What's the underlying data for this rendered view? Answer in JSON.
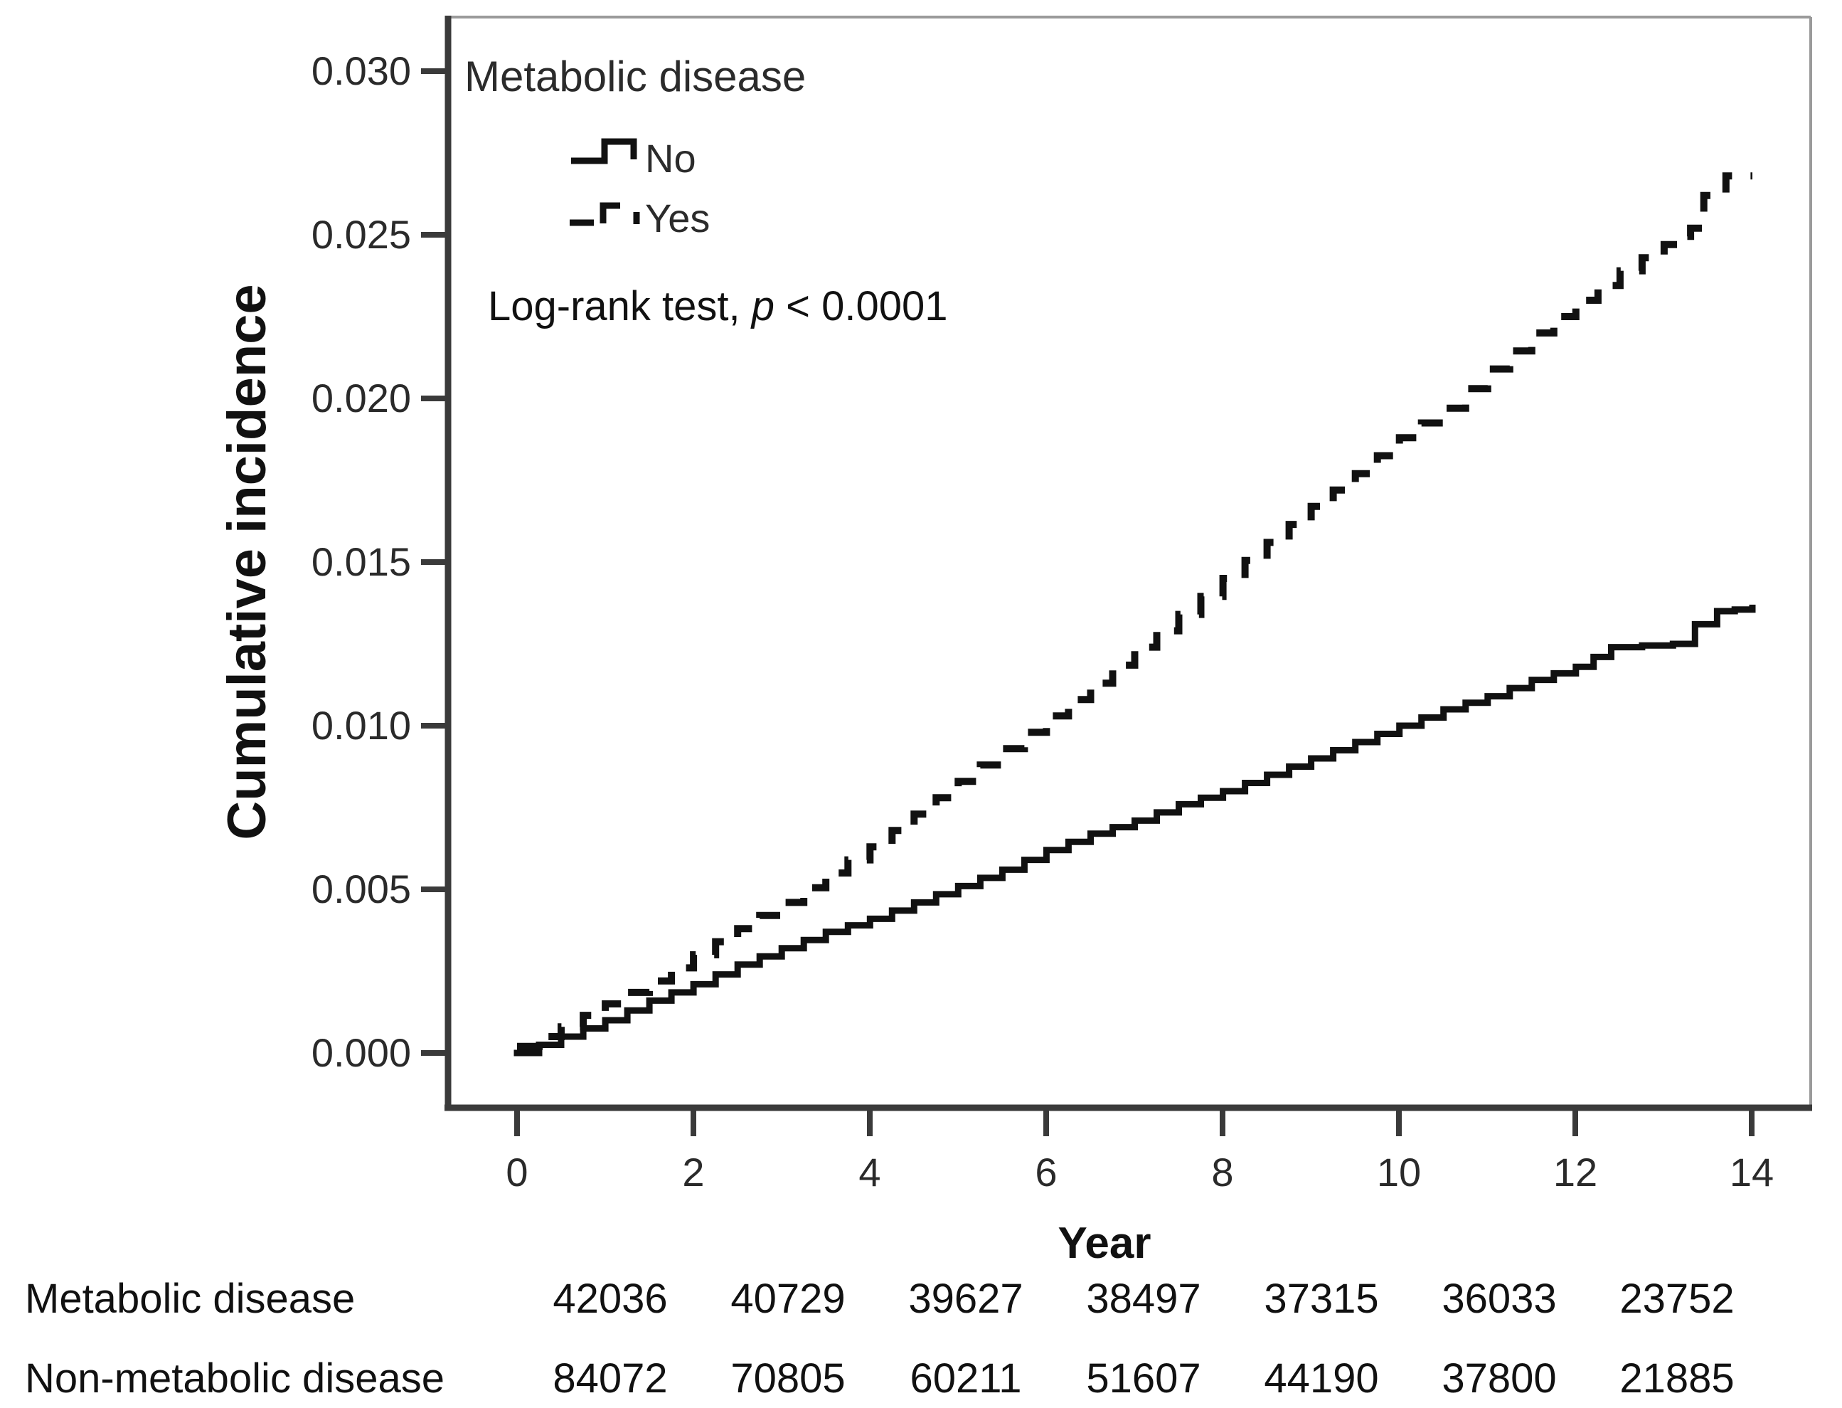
{
  "chart_data": {
    "type": "line",
    "subtype": "kaplan-meier-cumulative-incidence",
    "title": "",
    "xlabel": "Year",
    "ylabel": "Cumulative incidence",
    "xlim": [
      0,
      14
    ],
    "ylim": [
      0.0,
      0.03
    ],
    "grid": false,
    "xticks": [
      "0",
      "2",
      "4",
      "6",
      "8",
      "10",
      "12",
      "14"
    ],
    "yticks": [
      "0.030",
      "0.025",
      "0.020",
      "0.015",
      "0.010",
      "0.005",
      "0.000"
    ],
    "legend_title": "Metabolic disease",
    "legend_position": "top-left-inside",
    "annotation": {
      "prefix": "Log-rank test, ",
      "italic": "p",
      "suffix": " < 0.0001"
    },
    "series": [
      {
        "name": "No",
        "style": "solid",
        "color": "#111111",
        "points": [
          [
            0,
            0.0
          ],
          [
            0.5,
            0.0005
          ],
          [
            1,
            0.001
          ],
          [
            1.5,
            0.0016
          ],
          [
            2,
            0.0021
          ],
          [
            2.5,
            0.0027
          ],
          [
            3,
            0.0032
          ],
          [
            3.5,
            0.0037
          ],
          [
            4,
            0.0041
          ],
          [
            4.5,
            0.0046
          ],
          [
            5,
            0.0051
          ],
          [
            5.5,
            0.0056
          ],
          [
            6,
            0.0062
          ],
          [
            6.5,
            0.0067
          ],
          [
            7,
            0.0071
          ],
          [
            7.5,
            0.0076
          ],
          [
            8,
            0.008
          ],
          [
            8.5,
            0.0085
          ],
          [
            9,
            0.009
          ],
          [
            9.5,
            0.0095
          ],
          [
            10,
            0.01
          ],
          [
            10.5,
            0.0105
          ],
          [
            11,
            0.0109
          ],
          [
            11.5,
            0.0114
          ],
          [
            12,
            0.0118
          ],
          [
            12.4,
            0.0124
          ],
          [
            13.1,
            0.0125
          ],
          [
            13.35,
            0.0131
          ],
          [
            13.6,
            0.0135
          ],
          [
            14,
            0.0136
          ]
        ]
      },
      {
        "name": "Yes",
        "style": "dashed",
        "color": "#111111",
        "points": [
          [
            0,
            0.0002
          ],
          [
            0.5,
            0.0008
          ],
          [
            1,
            0.0015
          ],
          [
            1.5,
            0.0022
          ],
          [
            2,
            0.003
          ],
          [
            2.5,
            0.0038
          ],
          [
            3,
            0.0046
          ],
          [
            3.5,
            0.0055
          ],
          [
            4,
            0.0063
          ],
          [
            4.5,
            0.0073
          ],
          [
            5,
            0.0083
          ],
          [
            5.5,
            0.0093
          ],
          [
            6,
            0.0103
          ],
          [
            6.5,
            0.0113
          ],
          [
            7,
            0.0124
          ],
          [
            7.5,
            0.0134
          ],
          [
            8,
            0.0145
          ],
          [
            8.5,
            0.0156
          ],
          [
            9,
            0.0167
          ],
          [
            9.5,
            0.0177
          ],
          [
            10,
            0.0188
          ],
          [
            10.5,
            0.0197
          ],
          [
            11,
            0.0209
          ],
          [
            11.5,
            0.022
          ],
          [
            12,
            0.023
          ],
          [
            12.5,
            0.0239
          ],
          [
            13,
            0.0247
          ],
          [
            13.3,
            0.0252
          ],
          [
            13.45,
            0.0262
          ],
          [
            13.7,
            0.0268
          ],
          [
            14,
            0.0268
          ]
        ]
      }
    ]
  },
  "risk_table": {
    "rows": [
      {
        "label": "Metabolic disease",
        "values": [
          "42036",
          "40729",
          "39627",
          "38497",
          "37315",
          "36033",
          "23752"
        ]
      },
      {
        "label": "Non-metabolic disease",
        "values": [
          "84072",
          "70805",
          "60211",
          "51607",
          "44190",
          "37800",
          "21885"
        ]
      }
    ]
  }
}
